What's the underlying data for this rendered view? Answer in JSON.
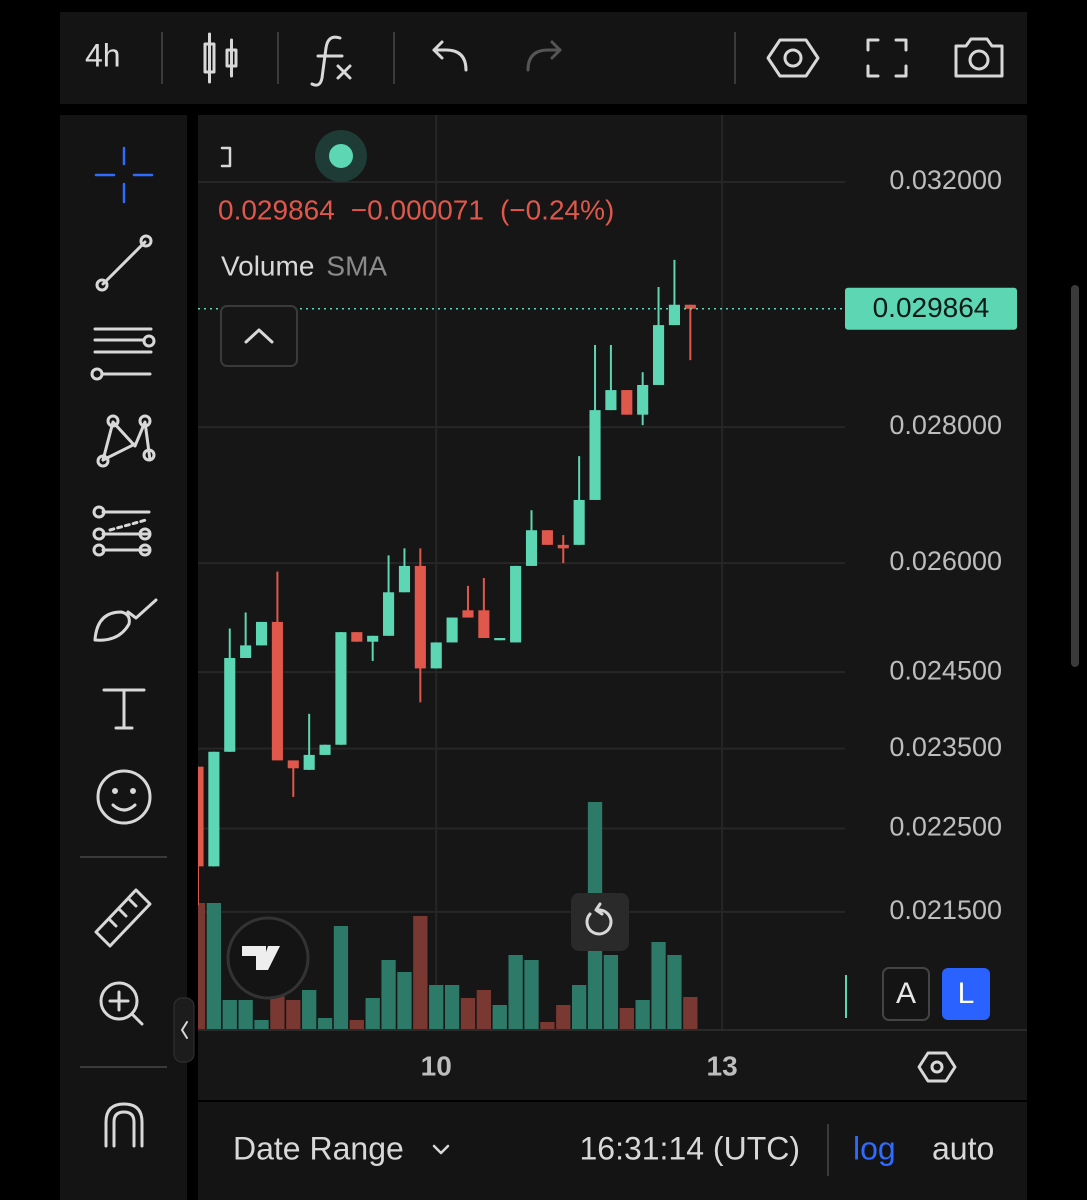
{
  "toolbar": {
    "interval": "4h"
  },
  "chart_data": {
    "type": "candlestick",
    "log_scale": true,
    "grid": true,
    "up_color": "#5cd6b3",
    "down_color": "#e0574b",
    "volume_up_color": "#2d7a69",
    "volume_down_color": "#7a3832",
    "x": [
      7.5,
      7.6667,
      7.8333,
      8,
      8.1667,
      8.3333,
      8.5,
      8.6667,
      8.8333,
      9,
      9.1667,
      9.3333,
      9.5,
      9.6667,
      9.8333,
      10,
      10.1667,
      10.3333,
      10.5,
      10.6667,
      10.8333,
      11,
      11.1667,
      11.3333,
      11.5,
      11.6667,
      11.8333,
      12,
      12.1667,
      12.3333,
      12.5,
      12.6667
    ],
    "open": [
      0.02327,
      0.02204,
      0.02346,
      0.02469,
      0.02486,
      0.02518,
      0.02335,
      0.02323,
      0.02342,
      0.02355,
      0.02504,
      0.02491,
      0.02499,
      0.02559,
      0.02596,
      0.02455,
      0.0249,
      0.02534,
      0.02534,
      0.02493,
      0.0249,
      0.02596,
      0.02647,
      0.02626,
      0.02626,
      0.02691,
      0.02826,
      0.02857,
      0.02819,
      0.02865,
      0.0296,
      0.02993
    ],
    "high": [
      0.02327,
      0.02346,
      0.02509,
      0.02531,
      0.02518,
      0.02588,
      0.02335,
      0.02395,
      0.02355,
      0.02504,
      0.02504,
      0.02499,
      0.02611,
      0.02621,
      0.02621,
      0.0249,
      0.02524,
      0.02568,
      0.02579,
      0.02496,
      0.02596,
      0.02676,
      0.02647,
      0.0264,
      0.02756,
      0.02928,
      0.02928,
      0.02857,
      0.02885,
      0.03022,
      0.03067,
      0.02993
    ],
    "low": [
      0.02158,
      0.02204,
      0.02346,
      0.02469,
      0.02486,
      0.02335,
      0.02289,
      0.02323,
      0.02342,
      0.02355,
      0.02491,
      0.02465,
      0.02499,
      0.02559,
      0.0241,
      0.02455,
      0.0249,
      0.02524,
      0.02496,
      0.02493,
      0.0249,
      0.02596,
      0.02626,
      0.026,
      0.02626,
      0.02691,
      0.02826,
      0.02819,
      0.02803,
      0.02865,
      0.0296,
      0.02904
    ],
    "close": [
      0.02204,
      0.02346,
      0.02469,
      0.02486,
      0.02518,
      0.02335,
      0.02325,
      0.02342,
      0.02355,
      0.02504,
      0.02491,
      0.02499,
      0.02559,
      0.02596,
      0.02455,
      0.0249,
      0.02524,
      0.02524,
      0.02496,
      0.02496,
      0.02596,
      0.02647,
      0.02626,
      0.02621,
      0.02691,
      0.02826,
      0.02857,
      0.02819,
      0.02865,
      0.0296,
      0.02993,
      0.029864
    ],
    "volume": [
      127,
      127,
      30,
      30,
      10,
      40,
      30,
      40,
      12,
      104,
      10,
      32,
      70,
      58,
      114,
      45,
      45,
      32,
      40,
      25,
      75,
      70,
      8,
      25,
      45,
      228,
      75,
      22,
      30,
      88,
      75,
      33
    ],
    "volume_ylim": [
      0,
      230
    ],
    "xlim": [
      7.5,
      14.29
    ],
    "xticks": [
      10,
      13
    ],
    "ylim": [
      0.02016,
      0.03319
    ],
    "yticks": [
      {
        "value": 0.032,
        "label": "0.032000"
      },
      {
        "value": 0.028,
        "label": "0.028000"
      },
      {
        "value": 0.026,
        "label": "0.026000"
      },
      {
        "value": 0.0245,
        "label": "0.024500"
      },
      {
        "value": 0.0235,
        "label": "0.023500"
      },
      {
        "value": 0.0225,
        "label": "0.022500"
      },
      {
        "value": 0.0215,
        "label": "0.021500"
      }
    ],
    "last_price": 0.029864,
    "change": {
      "value": -7.1e-05,
      "label": "−0.000071"
    },
    "change_percent": {
      "value": -0.24,
      "label": "(−0.24%)"
    },
    "indicator": {
      "name": "Volume",
      "kind": "SMA"
    }
  },
  "price_scale_buttons": [
    "A",
    "L"
  ],
  "footer": {
    "date_range": "Date Range",
    "time": "16:31:14 (UTC)",
    "log": "log",
    "auto": "auto"
  }
}
